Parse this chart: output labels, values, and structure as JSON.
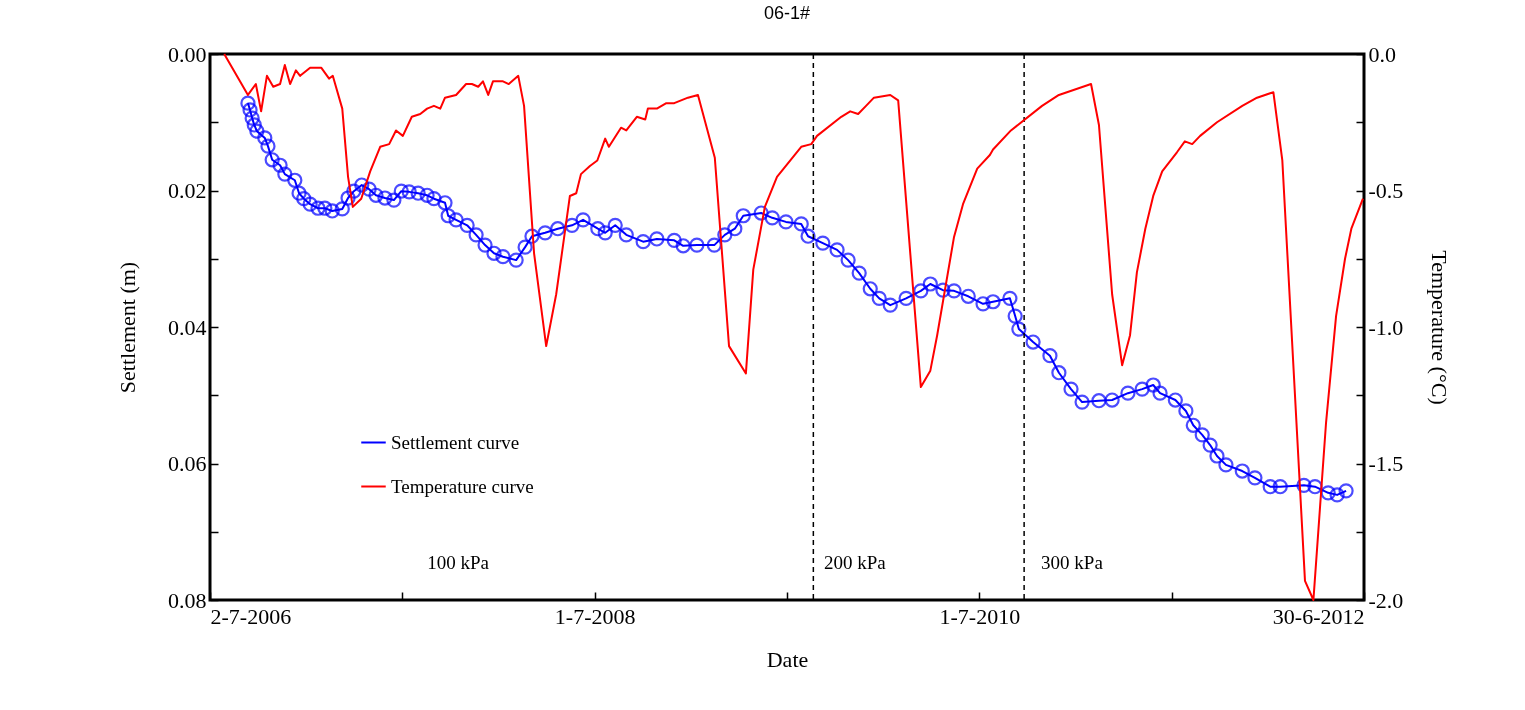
{
  "chart_data": {
    "type": "line",
    "title": "06-1#",
    "xlabel": "Date",
    "ylabel": "Settlement (m)",
    "y2label": "Temperature (°C)",
    "xlim": [
      "2006-07-02",
      "2012-06-30"
    ],
    "xticks": [
      {
        "value": "2006-07-02",
        "label": "2-7-2006"
      },
      {
        "value": "2007-07-02",
        "label": null
      },
      {
        "value": "2008-07-01",
        "label": "1-7-2008"
      },
      {
        "value": "2009-07-01",
        "label": null
      },
      {
        "value": "2010-07-01",
        "label": "1-7-2010"
      },
      {
        "value": "2011-07-01",
        "label": null
      },
      {
        "value": "2012-06-30",
        "label": "30-6-2012"
      }
    ],
    "ylim": [
      0.08,
      0.0
    ],
    "yticks": [
      {
        "value": 0,
        "label": "0.00"
      },
      {
        "value": 0.01,
        "label": null
      },
      {
        "value": 0.02,
        "label": "0.02"
      },
      {
        "value": 0.03,
        "label": null
      },
      {
        "value": 0.04,
        "label": "0.04"
      },
      {
        "value": 0.05,
        "label": null
      },
      {
        "value": 0.06,
        "label": "0.06"
      },
      {
        "value": 0.07,
        "label": null
      },
      {
        "value": 0.08,
        "label": "0.08"
      }
    ],
    "y2lim": [
      -2.0,
      0.0
    ],
    "y2ticks": [
      {
        "value": -2,
        "label": "-2.0"
      },
      {
        "value": -1.75,
        "label": null
      },
      {
        "value": -1.5,
        "label": "-1.5"
      },
      {
        "value": -1.25,
        "label": null
      },
      {
        "value": -1,
        "label": "-1.0"
      },
      {
        "value": -0.75,
        "label": null
      },
      {
        "value": -0.5,
        "label": "-0.5"
      },
      {
        "value": -0.25,
        "label": null
      },
      {
        "value": 0,
        "label": "0.0"
      }
    ],
    "legend": "left",
    "series": [
      {
        "name": "Settlement curve",
        "color": "#0000ff",
        "marker": "circle",
        "x": [
          "2006-09-12",
          "2006-09-16",
          "2006-09-20",
          "2006-09-24",
          "2006-09-29",
          "2006-10-14",
          "2006-10-20",
          "2006-10-28",
          "2006-11-12",
          "2006-11-21",
          "2006-12-10",
          "2006-12-18",
          "2006-12-27",
          "2007-01-08",
          "2007-01-23",
          "2007-02-05",
          "2007-02-19",
          "2007-03-10",
          "2007-03-21",
          "2007-04-01",
          "2007-04-16",
          "2007-04-30",
          "2007-05-13",
          "2007-05-30",
          "2007-06-16",
          "2007-06-30",
          "2007-07-15",
          "2007-08-01",
          "2007-08-18",
          "2007-08-31",
          "2007-09-21",
          "2007-09-27",
          "2007-10-12",
          "2007-11-02",
          "2007-11-19",
          "2007-12-06",
          "2007-12-23",
          "2008-01-09",
          "2008-02-03",
          "2008-02-20",
          "2008-03-04",
          "2008-03-29",
          "2008-04-22",
          "2008-05-19",
          "2008-06-09",
          "2008-07-07",
          "2008-07-21",
          "2008-08-09",
          "2008-08-30",
          "2008-10-01",
          "2008-10-27",
          "2008-11-29",
          "2008-12-16",
          "2009-01-11",
          "2009-02-13",
          "2009-03-05",
          "2009-03-24",
          "2009-04-09",
          "2009-05-13",
          "2009-06-03",
          "2009-06-29",
          "2009-07-28",
          "2009-08-10",
          "2009-09-07",
          "2009-10-04",
          "2009-10-25",
          "2009-11-15",
          "2009-12-06",
          "2009-12-23",
          "2010-01-13",
          "2010-02-12",
          "2010-03-12",
          "2010-03-30",
          "2010-04-23",
          "2010-05-14",
          "2010-06-10",
          "2010-07-08",
          "2010-07-27",
          "2010-08-28",
          "2010-09-07",
          "2010-09-14",
          "2010-10-11",
          "2010-11-12",
          "2010-11-29",
          "2010-12-22",
          "2011-01-12",
          "2011-02-13",
          "2011-03-10",
          "2011-04-09",
          "2011-05-06",
          "2011-05-27",
          "2011-06-09",
          "2011-07-08",
          "2011-07-28",
          "2011-08-11",
          "2011-08-28",
          "2011-09-12",
          "2011-09-25",
          "2011-10-12",
          "2011-11-12",
          "2011-12-06",
          "2012-01-04",
          "2012-01-23",
          "2012-03-08",
          "2012-03-29",
          "2012-04-23",
          "2012-05-10",
          "2012-05-27"
        ],
        "values": [
          0.0072,
          0.0082,
          0.0094,
          0.0104,
          0.0113,
          0.0123,
          0.0135,
          0.0155,
          0.0163,
          0.0176,
          0.0185,
          0.0204,
          0.0212,
          0.022,
          0.0226,
          0.0226,
          0.023,
          0.0227,
          0.0211,
          0.0201,
          0.0192,
          0.0198,
          0.0207,
          0.0211,
          0.0214,
          0.0201,
          0.0202,
          0.0204,
          0.0207,
          0.0212,
          0.0218,
          0.0237,
          0.0243,
          0.0251,
          0.0265,
          0.028,
          0.0292,
          0.0297,
          0.0302,
          0.0283,
          0.0267,
          0.0262,
          0.0256,
          0.0251,
          0.0243,
          0.0256,
          0.0262,
          0.0251,
          0.0265,
          0.0275,
          0.0271,
          0.0273,
          0.0281,
          0.028,
          0.028,
          0.0265,
          0.0256,
          0.0237,
          0.0233,
          0.024,
          0.0246,
          0.0249,
          0.0267,
          0.0277,
          0.0287,
          0.0302,
          0.0321,
          0.0344,
          0.0358,
          0.0368,
          0.0358,
          0.0347,
          0.0337,
          0.0346,
          0.0347,
          0.0355,
          0.0366,
          0.0363,
          0.0358,
          0.0384,
          0.0403,
          0.0422,
          0.0442,
          0.0467,
          0.0491,
          0.051,
          0.0508,
          0.0507,
          0.0497,
          0.0491,
          0.0485,
          0.0497,
          0.0507,
          0.0523,
          0.0544,
          0.0558,
          0.0573,
          0.0589,
          0.0602,
          0.0611,
          0.0621,
          0.0634,
          0.0634,
          0.0632,
          0.0634,
          0.0643,
          0.0646,
          0.064
        ]
      },
      {
        "name": "Temperature curve",
        "color": "#ff0000",
        "marker": "none",
        "axis": "y2",
        "x": [
          "2006-07-29",
          "2006-09-12",
          "2006-09-27",
          "2006-10-03",
          "2006-10-07",
          "2006-10-18",
          "2006-10-30",
          "2006-11-12",
          "2006-11-21",
          "2006-12-01",
          "2006-12-12",
          "2006-12-20",
          "2007-01-08",
          "2007-01-29",
          "2007-02-13",
          "2007-02-20",
          "2007-03-10",
          "2007-03-21",
          "2007-03-30",
          "2007-04-15",
          "2007-05-02",
          "2007-05-21",
          "2007-06-07",
          "2007-06-20",
          "2007-07-03",
          "2007-07-20",
          "2007-08-05",
          "2007-08-18",
          "2007-08-31",
          "2007-09-12",
          "2007-09-21",
          "2007-10-12",
          "2007-10-31",
          "2007-11-11",
          "2007-11-23",
          "2007-12-02",
          "2007-12-12",
          "2007-12-21",
          "2008-01-09",
          "2008-01-20",
          "2008-02-07",
          "2008-02-18",
          "2008-03-08",
          "2008-03-31",
          "2008-04-19",
          "2008-05-15",
          "2008-05-27",
          "2008-06-05",
          "2008-06-22",
          "2008-07-06",
          "2008-07-21",
          "2008-07-28",
          "2008-08-20",
          "2008-08-30",
          "2008-09-19",
          "2008-10-05",
          "2008-10-10",
          "2008-10-27",
          "2008-11-14",
          "2008-11-29",
          "2008-12-25",
          "2009-01-13",
          "2009-02-14",
          "2009-03-13",
          "2009-04-14",
          "2009-04-28",
          "2009-05-20",
          "2009-06-12",
          "2009-07-28",
          "2009-08-16",
          "2009-08-27",
          "2009-10-12",
          "2009-10-29",
          "2009-11-13",
          "2009-11-28",
          "2009-12-13",
          "2010-01-13",
          "2010-01-28",
          "2010-03-12",
          "2010-03-30",
          "2010-04-12",
          "2010-05-14",
          "2010-05-31",
          "2010-06-27",
          "2010-07-21",
          "2010-07-27",
          "2010-08-30",
          "2010-10-28",
          "2010-11-29",
          "2011-01-29",
          "2011-02-13",
          "2011-03-10",
          "2011-03-29",
          "2011-04-13",
          "2011-04-26",
          "2011-05-12",
          "2011-05-27",
          "2011-06-13",
          "2011-07-11",
          "2011-07-26",
          "2011-08-09",
          "2011-08-24",
          "2011-09-25",
          "2011-11-12",
          "2011-12-10",
          "2012-01-10",
          "2012-01-27",
          "2012-03-10",
          "2012-03-26",
          "2012-04-19",
          "2012-05-08",
          "2012-05-25",
          "2012-06-06",
          "2012-06-28"
        ],
        "values": [
          0.0,
          -0.15,
          -0.11,
          -0.17,
          -0.21,
          -0.08,
          -0.12,
          -0.11,
          -0.04,
          -0.11,
          -0.06,
          -0.08,
          -0.05,
          -0.05,
          -0.09,
          -0.08,
          -0.2,
          -0.45,
          -0.56,
          -0.53,
          -0.43,
          -0.34,
          -0.33,
          -0.28,
          -0.3,
          -0.23,
          -0.22,
          -0.2,
          -0.19,
          -0.2,
          -0.16,
          -0.15,
          -0.11,
          -0.11,
          -0.12,
          -0.1,
          -0.15,
          -0.1,
          -0.1,
          -0.11,
          -0.08,
          -0.19,
          -0.73,
          -1.07,
          -0.88,
          -0.52,
          -0.51,
          -0.44,
          -0.41,
          -0.39,
          -0.31,
          -0.34,
          -0.27,
          -0.28,
          -0.23,
          -0.24,
          -0.2,
          -0.2,
          -0.18,
          -0.18,
          -0.16,
          -0.15,
          -0.38,
          -1.07,
          -1.17,
          -0.79,
          -0.56,
          -0.45,
          -0.34,
          -0.33,
          -0.3,
          -0.23,
          -0.21,
          -0.22,
          -0.19,
          -0.16,
          -0.15,
          -0.17,
          -1.22,
          -1.16,
          -1.03,
          -0.67,
          -0.55,
          -0.42,
          -0.37,
          -0.35,
          -0.28,
          -0.19,
          -0.15,
          -0.11,
          -0.26,
          -0.88,
          -1.14,
          -1.03,
          -0.8,
          -0.64,
          -0.52,
          -0.43,
          -0.36,
          -0.32,
          -0.33,
          -0.3,
          -0.25,
          -0.19,
          -0.16,
          -0.14,
          -0.39,
          -1.93,
          -2.0,
          -1.35,
          -0.96,
          -0.75,
          -0.64,
          -0.53
        ]
      }
    ],
    "ref_lines": [
      {
        "axis": "x",
        "value": "2009-08-20",
        "color": "#000000",
        "line_style": "dashed"
      },
      {
        "axis": "x",
        "value": "2010-09-24",
        "color": "#000000",
        "line_style": "dashed"
      }
    ],
    "annotations": [
      "100 kPa",
      "200 kPa",
      "300 kPa"
    ]
  }
}
